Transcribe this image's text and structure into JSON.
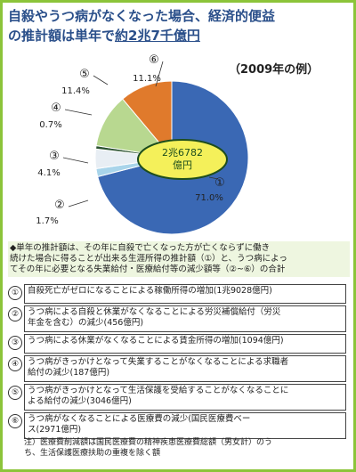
{
  "title": {
    "line1": "自殺やうつ病がなくなった場合、経済的便益",
    "line2_prefix": "の推計額は単年で",
    "line2_highlight": "約2兆7千億円"
  },
  "year_note": "（2009年の例）",
  "chart_data": {
    "type": "pie",
    "center_label": [
      "2兆6782",
      "億円"
    ],
    "slices": [
      {
        "label": "①",
        "value": 71.0,
        "value_text": "71.0%",
        "color": "#3a68b4"
      },
      {
        "label": "②",
        "value": 1.7,
        "value_text": "1.7%",
        "color": "#a8d4ea"
      },
      {
        "label": "③",
        "value": 4.1,
        "value_text": "4.1%",
        "color": "#e8eef4"
      },
      {
        "label": "④",
        "value": 0.7,
        "value_text": "0.7%",
        "color": "#2a5230"
      },
      {
        "label": "⑤",
        "value": 11.4,
        "value_text": "11.4%",
        "color": "#b8d890"
      },
      {
        "label": "⑥",
        "value": 11.1,
        "value_text": "11.1%",
        "color": "#e07a2c"
      }
    ]
  },
  "summary": [
    "◆単年の推計額は、その年に自殺で亡くなった方が亡くならずに働き",
    "続けた場合に得ることが出来る生涯所得の推計額（①）と、うつ病によっ",
    "てその年に必要となる失業給付・医療給付等の減少額等（②~⑥）の合計"
  ],
  "items": [
    {
      "num": "①",
      "lines": [
        "自殺死亡がゼロになることによる稼働所得の増加(1兆9028億円)"
      ]
    },
    {
      "num": "②",
      "lines": [
        "うつ病による自殺と休業がなくなることによる労災補償給付（労災",
        "年金を含む）の減少(456億円)"
      ]
    },
    {
      "num": "③",
      "lines": [
        "うつ病による休業がなくなることによる賃金所得の増加(1094億円)"
      ]
    },
    {
      "num": "④",
      "lines": [
        "うつ病がきっかけとなって失業することがなくなることによる求職者",
        "給付の減少(187億円)"
      ]
    },
    {
      "num": "⑤",
      "lines": [
        "うつ病がきっかけとなって生活保護を受給することがなくなることに",
        "よる給付の減少(3046億円)"
      ]
    },
    {
      "num": "⑥",
      "lines": [
        "うつ病がなくなることによる医療費の減少(国民医療費ベー",
        "ス(2971億円)"
      ]
    }
  ],
  "note": [
    "注）医療費削減額は国民医療費の精神疾患医療費総額（男女計）のう",
    "ち、生活保護医療扶助の重複を除く額"
  ]
}
